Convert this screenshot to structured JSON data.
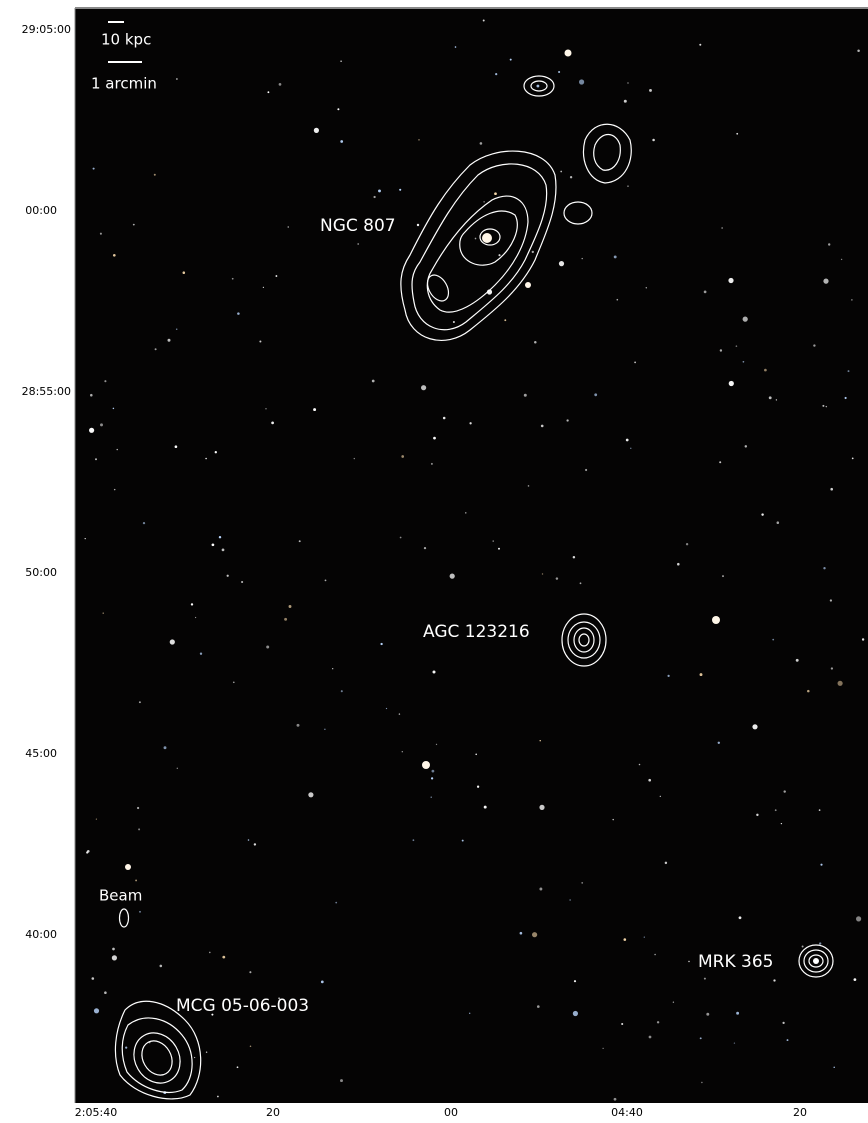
{
  "axes": {
    "yticks": [
      "29:05:00",
      "00:00",
      "28:55:00",
      "50:00",
      "45:00",
      "40:00"
    ],
    "xticks": [
      "2:05:40",
      "20",
      "00",
      "04:40",
      "20"
    ]
  },
  "scale_bars": [
    "10 kpc",
    "1 arcmin"
  ],
  "beam": "Beam",
  "labels": [
    "NGC 807",
    "AGC 123216",
    "MRK 365",
    "MCG 05-06-003"
  ]
}
